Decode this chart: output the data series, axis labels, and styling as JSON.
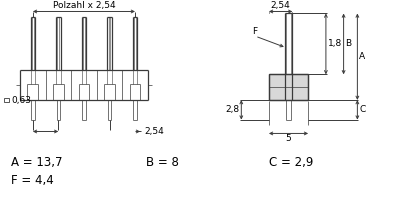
{
  "bg_color": "#ffffff",
  "lc": "#3a3a3a",
  "tc": "#000000",
  "ann_A": "13,7",
  "ann_B": "8",
  "ann_C": "2,9",
  "ann_F": "4,4",
  "lbl_polzahl": "Polzahl x 2,54",
  "lbl_pitch": "2,54",
  "lbl_063": "0,63",
  "lbl_254r": "2,54",
  "lbl_18": "1,8",
  "lbl_28": "2,8",
  "lbl_5": "5",
  "n_pins": 5
}
